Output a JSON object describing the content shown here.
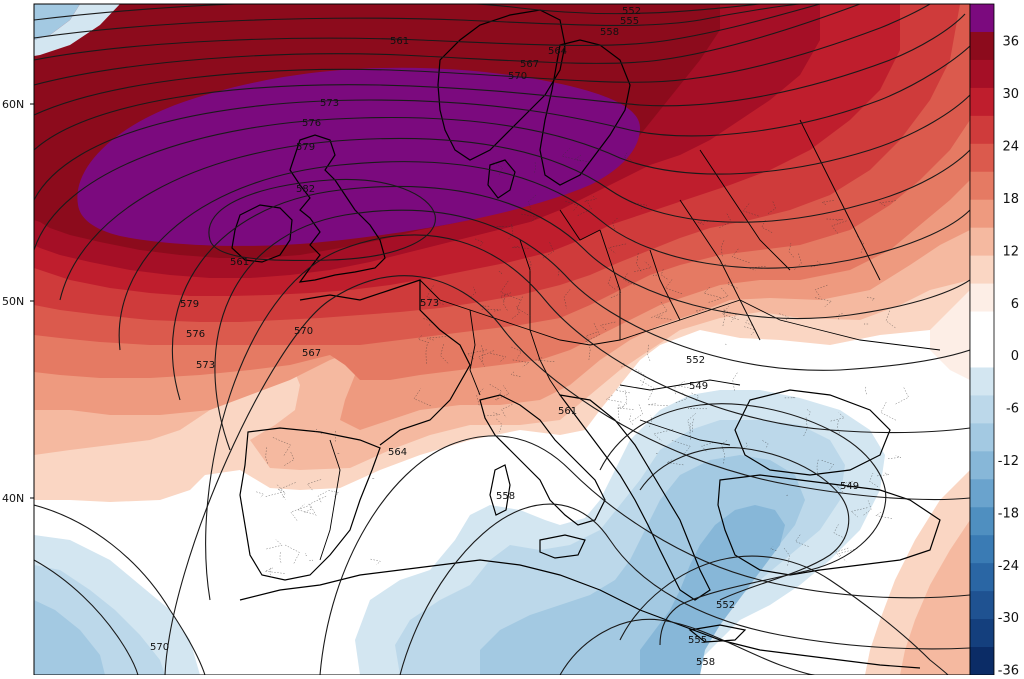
{
  "colorbar": {
    "ticks": [
      "36",
      "30",
      "24",
      "18",
      "12",
      "6",
      "0",
      "-6",
      "-12",
      "-18",
      "-24",
      "-30",
      "-36"
    ],
    "colors": [
      "#7b0a7e",
      "#8c0b1c",
      "#a50f26",
      "#bf1e2d",
      "#cf3b3b",
      "#db5a4d",
      "#e57a63",
      "#ee9a7f",
      "#f5b9a0",
      "#fad6c3",
      "#fdeee6",
      "#ffffff",
      "#ffffff",
      "#d3e6f1",
      "#bcd8ea",
      "#a3c9e2",
      "#87b7d8",
      "#6aa3cd",
      "#4f8fc0",
      "#3a7bb4",
      "#2a66a4",
      "#1f5291",
      "#143f7d",
      "#0b2c66"
    ]
  },
  "lat_labels": [
    "60N",
    "50N",
    "40N"
  ],
  "contour_labels": [
    "552",
    "555",
    "558",
    "561",
    "564",
    "567",
    "570",
    "573",
    "576",
    "579",
    "582",
    "561",
    "573",
    "576",
    "579",
    "570",
    "567",
    "573",
    "564",
    "561",
    "552",
    "549",
    "558",
    "549",
    "552",
    "555",
    "558",
    "570"
  ]
}
